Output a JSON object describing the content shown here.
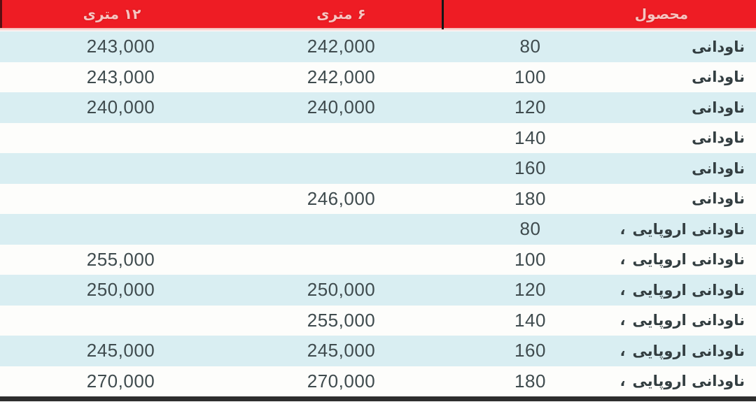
{
  "colors": {
    "header_bg": "#ee1c24",
    "header_text": "#f6c5c1",
    "row_alt_bg": "#d9eef2",
    "row_plain_bg": "#fdfdfb",
    "price_text": "#3f4b4e",
    "product_text": "#333e41",
    "divider": "#161616",
    "bottom_border": "#2d2d2d"
  },
  "chart_data": {
    "type": "table",
    "title": "",
    "direction": "rtl",
    "columns": [
      {
        "key": "price_12m",
        "label": "۱۲ متری"
      },
      {
        "key": "price_6m",
        "label": "۶ متری"
      },
      {
        "key": "size",
        "label": ""
      },
      {
        "key": "product",
        "label": "محصول"
      }
    ],
    "rows": [
      {
        "price_12m": "243,000",
        "price_6m": "242,000",
        "size": "80",
        "product": "ناودانی",
        "mark": ""
      },
      {
        "price_12m": "243,000",
        "price_6m": "242,000",
        "size": "100",
        "product": "ناودانی",
        "mark": ""
      },
      {
        "price_12m": "240,000",
        "price_6m": "240,000",
        "size": "120",
        "product": "ناودانی",
        "mark": ""
      },
      {
        "price_12m": "",
        "price_6m": "",
        "size": "140",
        "product": "ناودانی",
        "mark": ""
      },
      {
        "price_12m": "",
        "price_6m": "",
        "size": "160",
        "product": "ناودانی",
        "mark": ""
      },
      {
        "price_12m": "",
        "price_6m": "246,000",
        "size": "180",
        "product": "ناودانی",
        "mark": ""
      },
      {
        "price_12m": "",
        "price_6m": "",
        "size": "80",
        "product": "ناودانی اروپایی",
        "mark": "،"
      },
      {
        "price_12m": "255,000",
        "price_6m": "",
        "size": "100",
        "product": "ناودانی اروپایی",
        "mark": "،"
      },
      {
        "price_12m": "250,000",
        "price_6m": "250,000",
        "size": "120",
        "product": "ناودانی اروپایی",
        "mark": "،"
      },
      {
        "price_12m": "",
        "price_6m": "255,000",
        "size": "140",
        "product": "ناودانی اروپایی",
        "mark": "،"
      },
      {
        "price_12m": "245,000",
        "price_6m": "245,000",
        "size": "160",
        "product": "ناودانی اروپایی",
        "mark": "،"
      },
      {
        "price_12m": "270,000",
        "price_6m": "270,000",
        "size": "180",
        "product": "ناودانی اروپایی",
        "mark": "،"
      }
    ]
  }
}
